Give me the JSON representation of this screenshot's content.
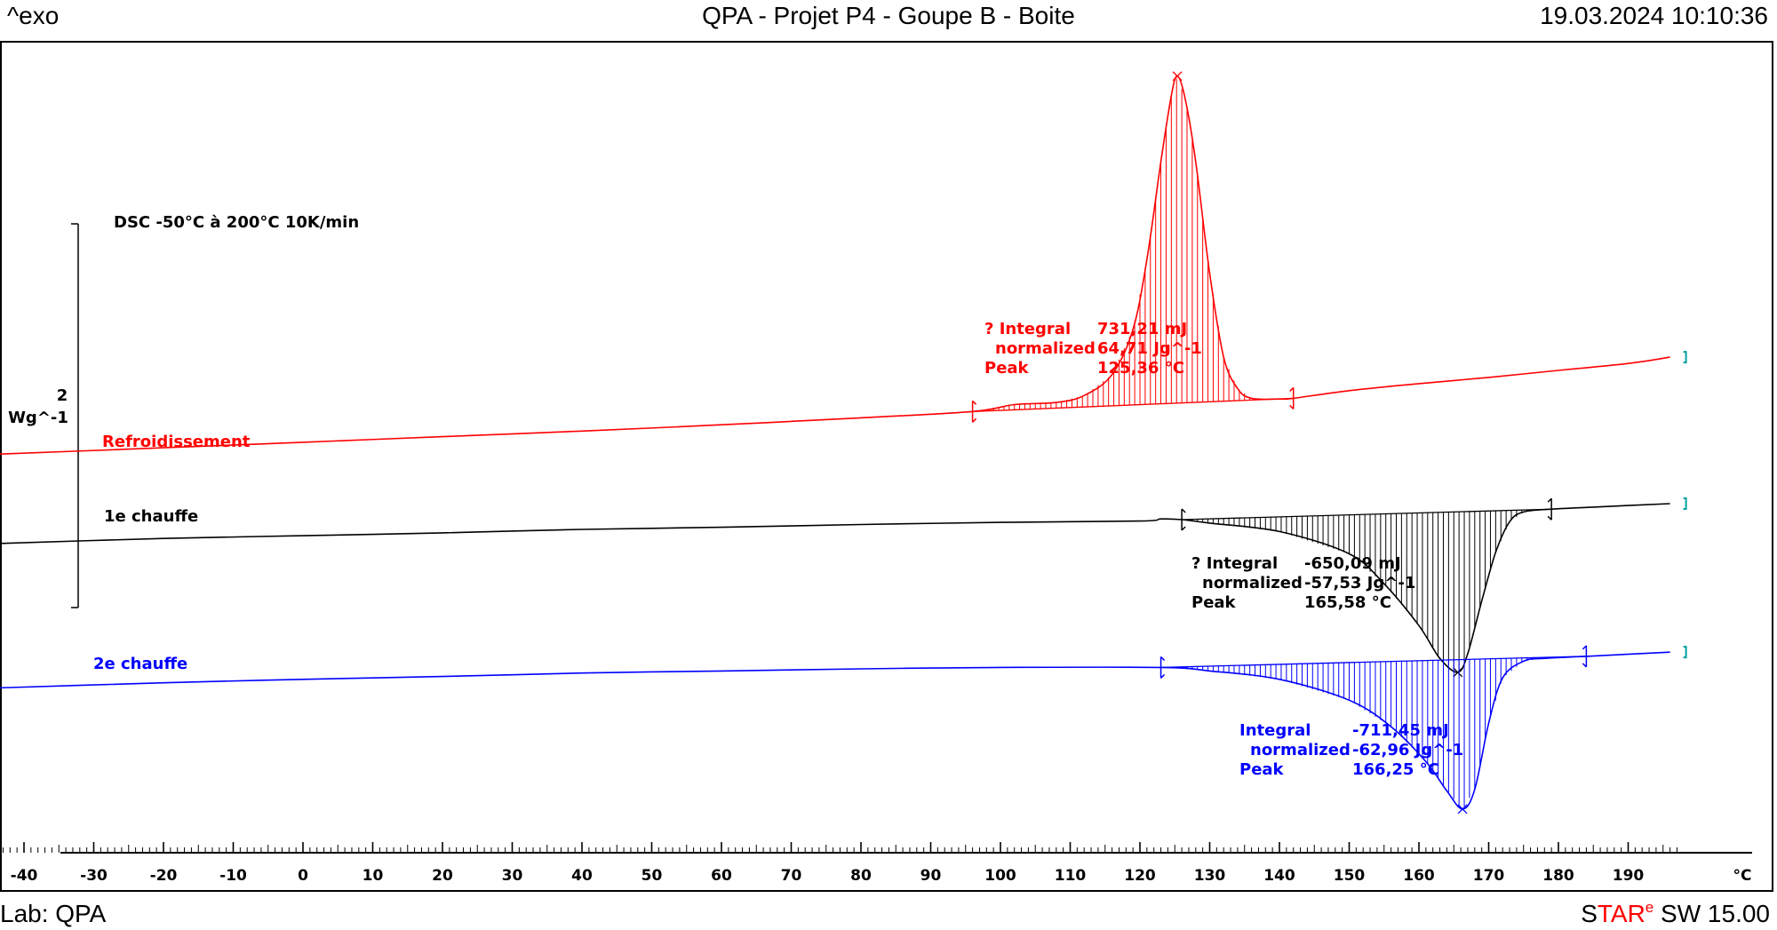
{
  "header": {
    "exo_label": "^exo",
    "title": "QPA - Projet P4 - Goupe B - Boite",
    "datetime": "19.03.2024 10:10:36"
  },
  "footer": {
    "lab": "Lab: QPA",
    "software_parts": [
      "S",
      "TAR",
      "e",
      " SW 15.00"
    ]
  },
  "chart_data": {
    "type": "line",
    "title": "DSC -50°C à 200°C 10K/min",
    "xlabel": "°C",
    "xlim": [
      -46,
      197
    ],
    "x_ticks": [
      -40,
      -30,
      -20,
      -10,
      0,
      10,
      20,
      30,
      40,
      50,
      60,
      70,
      80,
      90,
      100,
      110,
      120,
      130,
      140,
      150,
      160,
      170,
      180,
      190
    ],
    "ylabel": "Wg^-1",
    "y_scale_bar": {
      "value": "2",
      "unit": "Wg^-1"
    },
    "series": [
      {
        "name": "Refroidissement",
        "color": "#ff0000",
        "points": [
          [
            -46,
            0.0
          ],
          [
            -20,
            0.1
          ],
          [
            0,
            0.18
          ],
          [
            20,
            0.26
          ],
          [
            40,
            0.34
          ],
          [
            60,
            0.43
          ],
          [
            80,
            0.53
          ],
          [
            96,
            0.62
          ],
          [
            102,
            0.72
          ],
          [
            108,
            0.75
          ],
          [
            112,
            0.85
          ],
          [
            116,
            1.15
          ],
          [
            119,
            1.8
          ],
          [
            121,
            2.8
          ],
          [
            123,
            4.2
          ],
          [
            124.5,
            5.15
          ],
          [
            125.36,
            5.43
          ],
          [
            126.5,
            5.1
          ],
          [
            128,
            4.2
          ],
          [
            130,
            2.6
          ],
          [
            132,
            1.4
          ],
          [
            134,
            0.95
          ],
          [
            136,
            0.81
          ],
          [
            140,
            0.8
          ],
          [
            142,
            0.81
          ],
          [
            150,
            0.92
          ],
          [
            160,
            1.02
          ],
          [
            170,
            1.11
          ],
          [
            180,
            1.21
          ],
          [
            190,
            1.31
          ],
          [
            196,
            1.4
          ]
        ],
        "baseline": [
          [
            96,
            0.62
          ],
          [
            142,
            0.81
          ]
        ],
        "annotation": {
          "integral_label": "? Integral",
          "integral": "731,21 mJ",
          "normalized_label": "normalized",
          "normalized": "64,71 Jg^-1",
          "peak_label": "Peak",
          "peak": "125,36 °C"
        }
      },
      {
        "name": "1e chauffe",
        "color": "#000000",
        "points": [
          [
            -46,
            -1.28
          ],
          [
            -20,
            -1.2
          ],
          [
            0,
            -1.16
          ],
          [
            20,
            -1.12
          ],
          [
            40,
            -1.07
          ],
          [
            60,
            -1.04
          ],
          [
            80,
            -1.0
          ],
          [
            100,
            -0.97
          ],
          [
            120,
            -0.95
          ],
          [
            123,
            -0.92
          ],
          [
            126,
            -0.93
          ],
          [
            130,
            -0.98
          ],
          [
            140,
            -1.1
          ],
          [
            150,
            -1.42
          ],
          [
            155,
            -1.85
          ],
          [
            160,
            -2.45
          ],
          [
            163,
            -2.92
          ],
          [
            165.58,
            -3.12
          ],
          [
            167,
            -2.85
          ],
          [
            169,
            -2.1
          ],
          [
            171,
            -1.4
          ],
          [
            173,
            -0.96
          ],
          [
            175,
            -0.82
          ],
          [
            179,
            -0.78
          ],
          [
            185,
            -0.75
          ],
          [
            196,
            -0.7
          ]
        ],
        "baseline": [
          [
            126,
            -0.93
          ],
          [
            179,
            -0.78
          ]
        ],
        "annotation": {
          "integral_label": "? Integral",
          "integral": "-650,09 mJ",
          "normalized_label": "normalized",
          "normalized": "-57,53 Jg^-1",
          "peak_label": "Peak",
          "peak": "165,58 °C"
        }
      },
      {
        "name": "2e chauffe",
        "color": "#0000ff",
        "points": [
          [
            -46,
            -3.35
          ],
          [
            -20,
            -3.27
          ],
          [
            0,
            -3.22
          ],
          [
            20,
            -3.18
          ],
          [
            40,
            -3.13
          ],
          [
            60,
            -3.1
          ],
          [
            80,
            -3.07
          ],
          [
            100,
            -3.05
          ],
          [
            123,
            -3.05
          ],
          [
            130,
            -3.1
          ],
          [
            140,
            -3.22
          ],
          [
            150,
            -3.52
          ],
          [
            156,
            -3.9
          ],
          [
            161,
            -4.4
          ],
          [
            164,
            -4.82
          ],
          [
            166.25,
            -5.08
          ],
          [
            168,
            -4.8
          ],
          [
            170,
            -3.85
          ],
          [
            172,
            -3.2
          ],
          [
            175,
            -2.96
          ],
          [
            178,
            -2.92
          ],
          [
            184,
            -2.89
          ],
          [
            196,
            -2.83
          ]
        ],
        "baseline": [
          [
            123,
            -3.05
          ],
          [
            184,
            -2.89
          ]
        ],
        "annotation": {
          "integral_label": "Integral",
          "integral": "-711,45 mJ",
          "normalized_label": "normalized",
          "normalized": "-62,96 Jg^-1",
          "peak_label": "Peak",
          "peak": "166,25 °C"
        }
      }
    ]
  }
}
